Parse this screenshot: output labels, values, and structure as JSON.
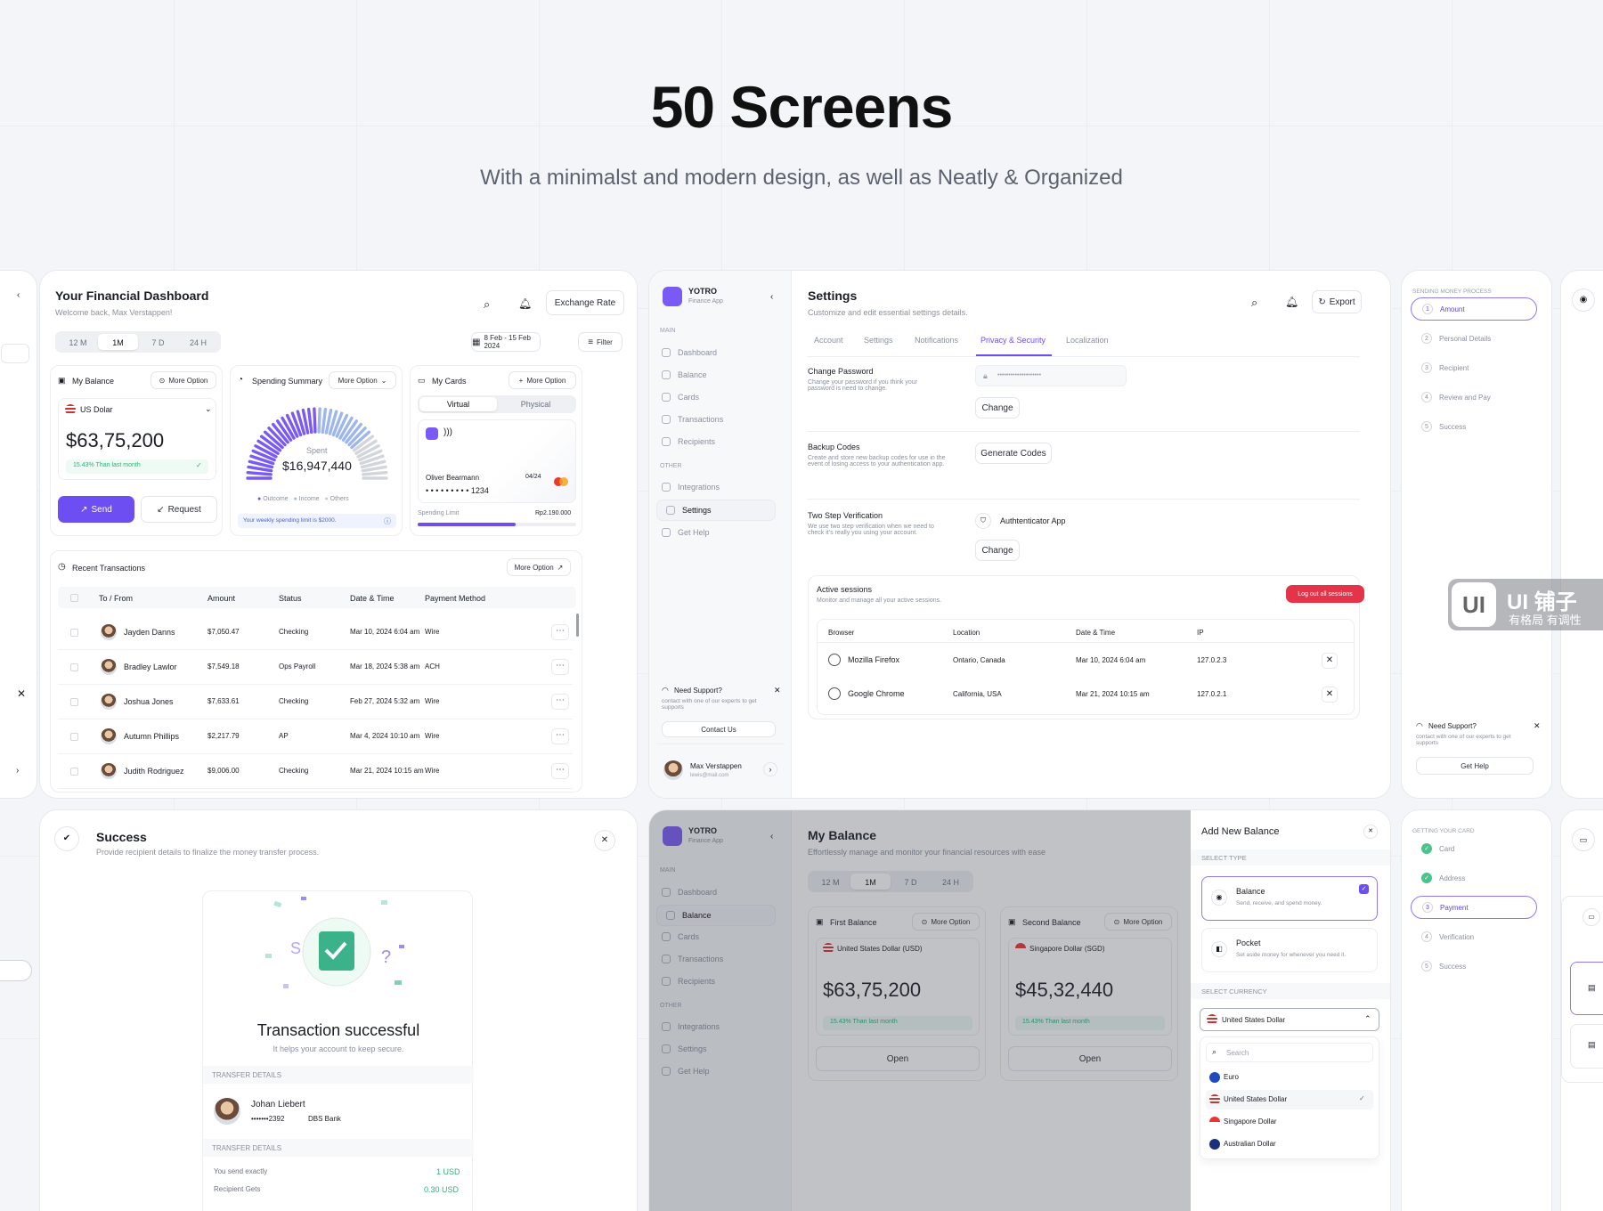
{
  "hero": {
    "title": "50 Screens",
    "subtitle": "With a minimalst and modern design, as well as Neatly & Organized"
  },
  "dashboard": {
    "title": "Your Financial Dashboard",
    "welcome": "Welcome back, Max Verstappen!",
    "search_icon": "search-icon",
    "bell_icon": "bell-icon",
    "exchange": "Exchange Rate",
    "ranges": [
      "12 M",
      "1M",
      "7 D",
      "24 H"
    ],
    "date_range": "8 Feb - 15 Feb 2024",
    "filter": "Filter",
    "balance": {
      "title": "My Balance",
      "more": "More Option",
      "currency": "US Dolar",
      "amount": "$63,75,200",
      "change": "15.43% Than last month",
      "send": "Send",
      "request": "Request"
    },
    "spending": {
      "title": "Spending Summary",
      "more": "More Option",
      "label": "Spent",
      "amount": "$16,947,440",
      "legend": [
        "Outcome",
        "Income",
        "Others"
      ],
      "note": "Your weekly spending limit is $2000."
    },
    "cards": {
      "title": "My Cards",
      "more": "More Option",
      "tabs": [
        "Virtual",
        "Physical"
      ],
      "holder": "Oliver Bearmann",
      "expiry": "04/24",
      "number": "• • • • • • • • • 1234",
      "limit_label": "Spending Limit",
      "limit": "Rp2.190.000",
      "limit_used": 0.62
    },
    "transactions": {
      "title": "Recent Transactions",
      "more": "More Option",
      "columns": [
        "To / From",
        "Amount",
        "Status",
        "Date & Time",
        "Payment Method"
      ],
      "rows": [
        {
          "name": "Jayden Danns",
          "amount": "$7,050.47",
          "status": "Checking",
          "date": "Mar 10, 2024 6:04 am",
          "method": "Wire"
        },
        {
          "name": "Bradley Lawlor",
          "amount": "$7,549.18",
          "status": "Ops Payroll",
          "date": "Mar 18, 2024 5:38 am",
          "method": "ACH"
        },
        {
          "name": "Joshua Jones",
          "amount": "$7,633.61",
          "status": "Checking",
          "date": "Feb 27, 2024 5:32 am",
          "method": "Wire"
        },
        {
          "name": "Autumn Phillips",
          "amount": "$2,217.79",
          "status": "AP",
          "date": "Mar 4, 2024 10:10 am",
          "method": "Wire"
        },
        {
          "name": "Judith Rodriguez",
          "amount": "$9,006.00",
          "status": "Checking",
          "date": "Mar 21, 2024 10:15 am",
          "method": "Wire"
        }
      ]
    }
  },
  "sidebar": {
    "brand": "YOTRO",
    "brand_sub": "Finance App",
    "main_label": "MAIN",
    "other_label": "OTHER",
    "items": [
      "Dashboard",
      "Balance",
      "Cards",
      "Transactions",
      "Recipients"
    ],
    "other_items": [
      "Integrations",
      "Settings",
      "Get Help"
    ],
    "support_title": "Need Support?",
    "support_text": "contact with one of our experts to get supports",
    "contact": "Contact Us",
    "user": "Max Verstappen",
    "email": "lewis@mail.com"
  },
  "settings": {
    "title": "Settings",
    "subtitle": "Customize and edit essential settings details.",
    "export": "Export",
    "tabs": [
      "Account",
      "Settings",
      "Notifications",
      "Privacy & Security",
      "Localization"
    ],
    "password": {
      "title": "Change Password",
      "text": "Change your password if you think your password is need to change.",
      "value": "••••••••••••••••••••",
      "button": "Change"
    },
    "backup": {
      "title": "Backup Codes",
      "text": "Create and store new backup codes for use in the event of losing access to your authentication app.",
      "button": "Generate Codes"
    },
    "twostep": {
      "title": "Two Step Verification",
      "text": "We use two step verification when we need to check it's really you using your account.",
      "method": "Authtenticator App",
      "button": "Change"
    },
    "sessions": {
      "title": "Active sessions",
      "text": "Monitor and manage all your active sessions.",
      "logout": "Log out all sessions",
      "columns": [
        "Browser",
        "Location",
        "Date & Time",
        "IP"
      ],
      "rows": [
        {
          "browser": "Mozilla Firefox",
          "location": "Ontario, Canada",
          "date": "Mar 10, 2024 6:04 am",
          "ip": "127.0.2.3"
        },
        {
          "browser": "Google Chrome",
          "location": "California, USA",
          "date": "Mar 21, 2024 10:15 am",
          "ip": "127.0.2.1"
        }
      ]
    }
  },
  "send_steps": {
    "heading": "SENDING MONEY PROCESS",
    "steps": [
      "Amount",
      "Personal Details",
      "Recipient",
      "Review and Pay",
      "Success"
    ],
    "support_title": "Need Support?",
    "support_text": "contact with one of our experts to get supports",
    "help": "Get Help"
  },
  "watermark": {
    "logo": "UI",
    "title": "UI 铺子",
    "sub": "有格局 有调性"
  },
  "success": {
    "title": "Success",
    "subtitle": "Provide recipient details to finalize the money transfer process.",
    "headline": "Transaction successful",
    "sub": "It helps your account to keep secure.",
    "details_label": "TRANSFER DETAILS",
    "recipient": "Johan Liebert",
    "account": "•••••••2392",
    "bank": "DBS Bank",
    "details_label2": "TRANSFER DETAILS",
    "send_label": "You send exactly",
    "send_value": "1 USD",
    "get_label": "Recipient Gets",
    "get_value": "0.30 USD"
  },
  "my_balance": {
    "title": "My Balance",
    "subtitle": "Effortlessly manage and monitor your financial resources with ease",
    "ranges": [
      "12 M",
      "1M",
      "7 D",
      "24 H"
    ],
    "first": {
      "title": "First Balance",
      "more": "More Option",
      "currency": "United States Dollar (USD)",
      "amount": "$63,75,200",
      "change": "15.43% Than last month",
      "open": "Open"
    },
    "second": {
      "title": "Second Balance",
      "more": "More Option",
      "currency": "Singapore Dollar (SGD)",
      "amount": "$45,32,440",
      "change": "15.43% Than last month",
      "open": "Open"
    }
  },
  "add_balance": {
    "title": "Add New Balance",
    "select_type": "SELECT TYPE",
    "balance": {
      "title": "Balance",
      "text": "Send, receive, and spend money."
    },
    "pocket": {
      "title": "Pocket",
      "text": "Set aside money for whenever you need it."
    },
    "select_currency": "SELECT CURRENCY",
    "selected": "United States Dollar",
    "search": "Search",
    "options": [
      "Euro",
      "United States Dollar",
      "Singapore Dollar",
      "Australian Dollar"
    ]
  },
  "card_steps": {
    "heading": "GETTING YOUR CARD",
    "steps": [
      "Card",
      "Address",
      "Payment",
      "Verification",
      "Success"
    ]
  },
  "colors": {
    "accent": "#6d4ef2",
    "danger": "#e5334a",
    "success": "#2fb37a"
  }
}
